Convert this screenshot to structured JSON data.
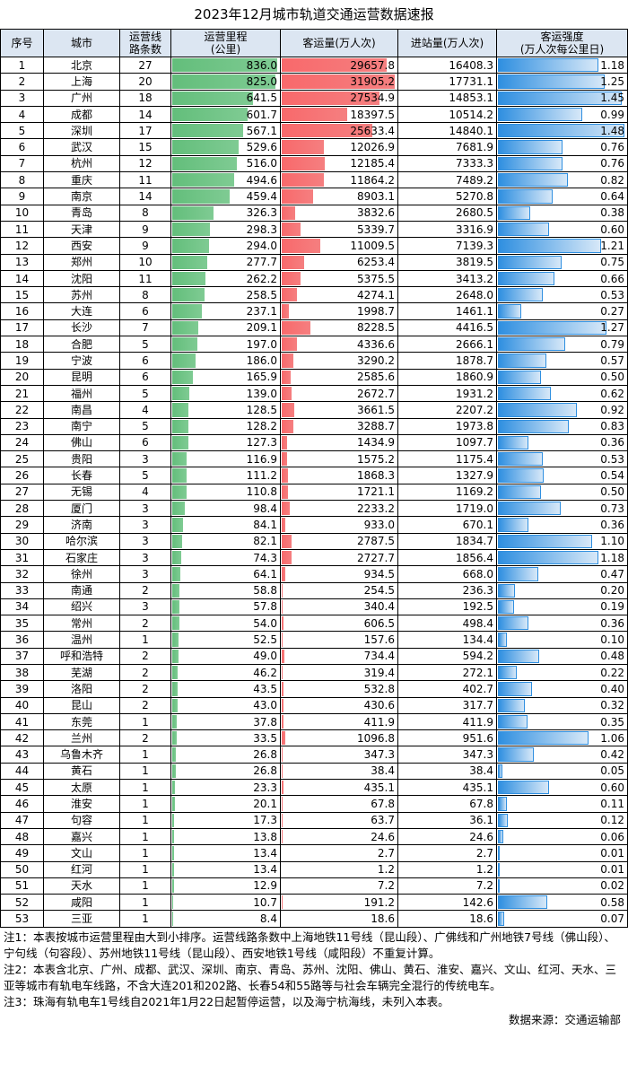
{
  "title": "2023年12月城市轨道交通运营数据速报",
  "table": {
    "header": [
      [
        "序号"
      ],
      [
        "城市"
      ],
      [
        "运营线",
        "路条数"
      ],
      [
        "运营里程",
        "(公里)"
      ],
      [
        "客运量(万人次)"
      ],
      [
        "进站量(万人次)"
      ],
      [
        "客运强度",
        "(万人次每公里日)"
      ]
    ],
    "rows": [
      [
        "1",
        "北京",
        "27",
        "836.0",
        "29657.8",
        "16408.3",
        "1.18"
      ],
      [
        "2",
        "上海",
        "20",
        "825.0",
        "31905.2",
        "17731.1",
        "1.25"
      ],
      [
        "3",
        "广州",
        "18",
        "641.5",
        "27534.9",
        "14853.1",
        "1.45"
      ],
      [
        "4",
        "成都",
        "14",
        "601.7",
        "18397.5",
        "10514.2",
        "0.99"
      ],
      [
        "5",
        "深圳",
        "17",
        "567.1",
        "25633.4",
        "14840.1",
        "1.48"
      ],
      [
        "6",
        "武汉",
        "15",
        "529.6",
        "12026.9",
        "7681.9",
        "0.76"
      ],
      [
        "7",
        "杭州",
        "12",
        "516.0",
        "12185.4",
        "7333.3",
        "0.76"
      ],
      [
        "8",
        "重庆",
        "11",
        "494.6",
        "11864.2",
        "7489.2",
        "0.82"
      ],
      [
        "9",
        "南京",
        "14",
        "459.4",
        "8903.1",
        "5270.8",
        "0.64"
      ],
      [
        "10",
        "青岛",
        "8",
        "326.3",
        "3832.6",
        "2680.5",
        "0.38"
      ],
      [
        "11",
        "天津",
        "9",
        "298.3",
        "5339.7",
        "3316.9",
        "0.60"
      ],
      [
        "12",
        "西安",
        "9",
        "294.0",
        "11009.5",
        "7139.3",
        "1.21"
      ],
      [
        "13",
        "郑州",
        "10",
        "277.7",
        "6253.4",
        "3819.5",
        "0.75"
      ],
      [
        "14",
        "沈阳",
        "11",
        "262.2",
        "5375.5",
        "3413.2",
        "0.66"
      ],
      [
        "15",
        "苏州",
        "8",
        "258.5",
        "4274.1",
        "2648.0",
        "0.53"
      ],
      [
        "16",
        "大连",
        "6",
        "237.1",
        "1998.7",
        "1461.1",
        "0.27"
      ],
      [
        "17",
        "长沙",
        "7",
        "209.1",
        "8228.5",
        "4416.5",
        "1.27"
      ],
      [
        "18",
        "合肥",
        "5",
        "197.0",
        "4336.6",
        "2666.1",
        "0.79"
      ],
      [
        "19",
        "宁波",
        "6",
        "186.0",
        "3290.2",
        "1878.7",
        "0.57"
      ],
      [
        "20",
        "昆明",
        "6",
        "165.9",
        "2585.6",
        "1860.9",
        "0.50"
      ],
      [
        "21",
        "福州",
        "5",
        "139.0",
        "2672.7",
        "1931.2",
        "0.62"
      ],
      [
        "22",
        "南昌",
        "4",
        "128.5",
        "3661.5",
        "2207.2",
        "0.92"
      ],
      [
        "23",
        "南宁",
        "5",
        "128.2",
        "3288.7",
        "1973.8",
        "0.83"
      ],
      [
        "24",
        "佛山",
        "6",
        "127.3",
        "1434.9",
        "1097.7",
        "0.36"
      ],
      [
        "25",
        "贵阳",
        "3",
        "116.9",
        "1575.2",
        "1175.4",
        "0.53"
      ],
      [
        "26",
        "长春",
        "5",
        "111.2",
        "1868.3",
        "1327.9",
        "0.54"
      ],
      [
        "27",
        "无锡",
        "4",
        "110.8",
        "1721.1",
        "1169.2",
        "0.50"
      ],
      [
        "28",
        "厦门",
        "3",
        "98.4",
        "2233.2",
        "1719.0",
        "0.73"
      ],
      [
        "29",
        "济南",
        "3",
        "84.1",
        "933.0",
        "670.1",
        "0.36"
      ],
      [
        "30",
        "哈尔滨",
        "3",
        "82.1",
        "2787.5",
        "1834.7",
        "1.10"
      ],
      [
        "31",
        "石家庄",
        "3",
        "74.3",
        "2727.7",
        "1856.4",
        "1.18"
      ],
      [
        "32",
        "徐州",
        "3",
        "64.1",
        "934.5",
        "668.0",
        "0.47"
      ],
      [
        "33",
        "南通",
        "2",
        "58.8",
        "254.5",
        "236.3",
        "0.20"
      ],
      [
        "34",
        "绍兴",
        "3",
        "57.8",
        "340.4",
        "192.5",
        "0.19"
      ],
      [
        "35",
        "常州",
        "2",
        "54.0",
        "606.5",
        "498.4",
        "0.36"
      ],
      [
        "36",
        "温州",
        "1",
        "52.5",
        "157.6",
        "134.4",
        "0.10"
      ],
      [
        "37",
        "呼和浩特",
        "2",
        "49.0",
        "734.4",
        "594.2",
        "0.48"
      ],
      [
        "38",
        "芜湖",
        "2",
        "46.2",
        "319.4",
        "272.1",
        "0.22"
      ],
      [
        "39",
        "洛阳",
        "2",
        "43.5",
        "532.8",
        "402.7",
        "0.40"
      ],
      [
        "40",
        "昆山",
        "2",
        "43.0",
        "430.6",
        "317.7",
        "0.32"
      ],
      [
        "41",
        "东莞",
        "1",
        "37.8",
        "411.9",
        "411.9",
        "0.35"
      ],
      [
        "42",
        "兰州",
        "2",
        "33.5",
        "1096.8",
        "951.6",
        "1.06"
      ],
      [
        "43",
        "乌鲁木齐",
        "1",
        "26.8",
        "347.3",
        "347.3",
        "0.42"
      ],
      [
        "44",
        "黄石",
        "1",
        "26.8",
        "38.4",
        "38.4",
        "0.05"
      ],
      [
        "45",
        "太原",
        "1",
        "23.3",
        "435.1",
        "435.1",
        "0.60"
      ],
      [
        "46",
        "淮安",
        "1",
        "20.1",
        "67.8",
        "67.8",
        "0.11"
      ],
      [
        "47",
        "句容",
        "1",
        "17.3",
        "63.7",
        "36.1",
        "0.12"
      ],
      [
        "48",
        "嘉兴",
        "1",
        "13.8",
        "24.6",
        "24.6",
        "0.06"
      ],
      [
        "49",
        "文山",
        "1",
        "13.4",
        "2.7",
        "2.7",
        "0.01"
      ],
      [
        "50",
        "红河",
        "1",
        "13.4",
        "1.2",
        "1.2",
        "0.01"
      ],
      [
        "51",
        "天水",
        "1",
        "12.9",
        "7.2",
        "7.2",
        "0.02"
      ],
      [
        "52",
        "咸阳",
        "1",
        "10.7",
        "191.2",
        "142.6",
        "0.58"
      ],
      [
        "53",
        "三亚",
        "1",
        "8.4",
        "18.6",
        "18.6",
        "0.07"
      ]
    ]
  },
  "notes": [
    "注1：本表按城市运营里程由大到小排序。运营线路条数中上海地铁11号线（昆山段）、广佛线和广州地铁7号线（佛山段）、宁句线（句容段）、苏州地铁11号线（昆山段）、西安地铁1号线（咸阳段）不重复计算。",
    "注2：本表含北京、广州、成都、武汉、深圳、南京、青岛、苏州、沈阳、佛山、黄石、淮安、嘉兴、文山、红河、天水、三亚等城市有轨电车线路，不含大连201和202路、长春54和55路等与社会车辆完全混行的传统电车。",
    "注3：珠海有轨电车1号线自2021年1月22日起暂停运营，以及海宁杭海线，未列入本表。"
  ],
  "source": "数据来源：交通运输部"
}
